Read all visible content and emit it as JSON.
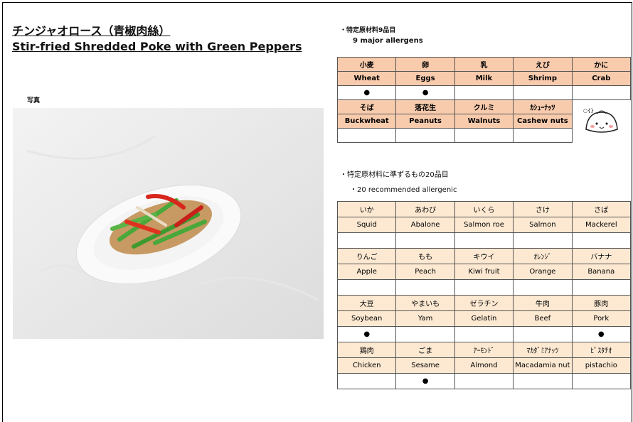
{
  "header": {
    "title_ja": "チンジャオロース（青椒肉絲）",
    "title_en": "Stir-fried Shredded Poke with Green Peppers"
  },
  "photo_label": "写真",
  "major": {
    "title_ja": "・特定原材料9品目",
    "title_en": "9 major allergens",
    "items": [
      {
        "ja": "小麦",
        "en": "Wheat",
        "mark": "●"
      },
      {
        "ja": "卵",
        "en": "Eggs",
        "mark": "●"
      },
      {
        "ja": "乳",
        "en": "Milk"
      },
      {
        "ja": "えび",
        "en": "Shrimp"
      },
      {
        "ja": "かに",
        "en": "Crab"
      },
      {
        "ja": "そば",
        "en": "Buckwheat"
      },
      {
        "ja": "落花生",
        "en": "Peanuts"
      },
      {
        "ja": "クルミ",
        "en": "Walnuts"
      },
      {
        "ja": "ｶｼｭｰﾅｯﾂ",
        "en": "Cashew nuts"
      }
    ]
  },
  "recommended": {
    "title_ja": "・特定原材料に準ずるもの20品目",
    "title_en": "・20 recommended allergenic",
    "items": [
      {
        "ja": "いか",
        "en": "Squid"
      },
      {
        "ja": "あわび",
        "en": "Abalone"
      },
      {
        "ja": "いくら",
        "en": "Salmon roe"
      },
      {
        "ja": "さけ",
        "en": "Salmon"
      },
      {
        "ja": "さば",
        "en": "Mackerel"
      },
      {
        "ja": "りんご",
        "en": "Apple"
      },
      {
        "ja": "もも",
        "en": "Peach"
      },
      {
        "ja": "キウイ",
        "en": "Kiwi fruit"
      },
      {
        "ja": "ｵﾚﾝｼﾞ",
        "en": "Orange"
      },
      {
        "ja": "バナナ",
        "en": "Banana"
      },
      {
        "ja": "大豆",
        "en": "Soybean",
        "mark": "●"
      },
      {
        "ja": "やまいも",
        "en": "Yam"
      },
      {
        "ja": "ゼラチン",
        "en": "Gelatin"
      },
      {
        "ja": "牛肉",
        "en": "Beef"
      },
      {
        "ja": "豚肉",
        "en": "Pork",
        "mark": "●"
      },
      {
        "ja": "鶏肉",
        "en": "Chicken"
      },
      {
        "ja": "ごま",
        "en": "Sesame",
        "mark": "●"
      },
      {
        "ja": "ｱｰﾓﾝﾄﾞ",
        "en": "Almond"
      },
      {
        "ja": "ﾏｶﾀﾞﾐｱﾅｯﾂ",
        "en": "Macadamia nut"
      },
      {
        "ja": "ﾋﾟｽﾀﾁｵ",
        "en": "pistachio"
      }
    ]
  }
}
